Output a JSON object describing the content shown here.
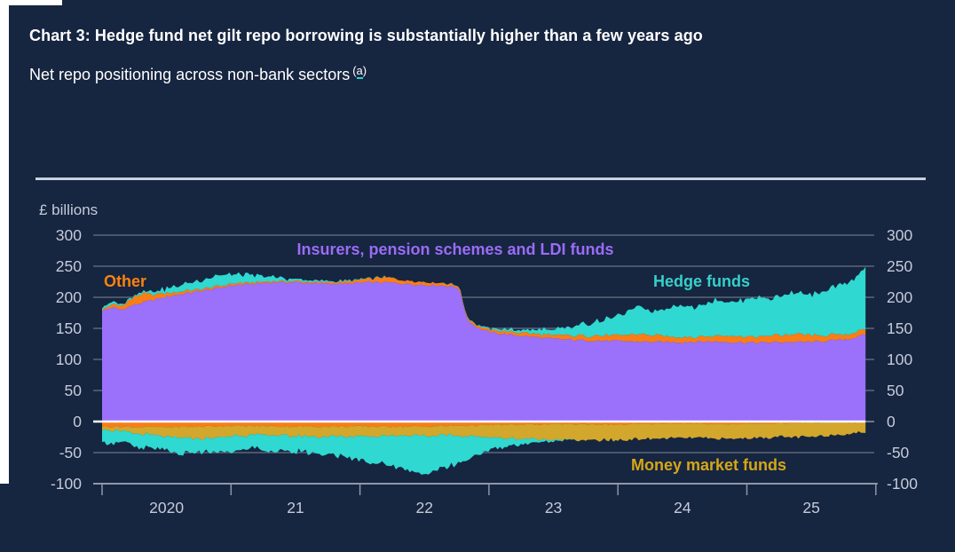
{
  "header": {
    "title": "Chart 3: Hedge fund net gilt repo borrowing is substantially higher than a few years ago",
    "subtitle": "Net repo positioning across non-bank sectors",
    "footnote_marker_open": "(",
    "footnote_marker_char": "a",
    "footnote_marker_close": ")"
  },
  "colors": {
    "background": "#162540",
    "insurers_area": "#9B70FA",
    "hedge_area": "#2FD8D0",
    "other_area": "#F97E16",
    "mmf_area": "#D2A72B",
    "insurers_label": "#9A6CF6",
    "hedge_label": "#35D1C9",
    "other_label": "#FF830F",
    "mmf_label": "#D6A716",
    "axis_text": "#C5CBD8",
    "gridline": "#5C6779",
    "axis_line": "#8D96A8",
    "zero_line": "#FFFFFF",
    "separator": "#C8D1DE",
    "footnote_underline": "#2DD1C9"
  },
  "chart_data": {
    "type": "area",
    "stacked": true,
    "title": "Net repo positioning across non-bank sectors",
    "ylabel": "£ billions",
    "ylim": [
      -100,
      300
    ],
    "grid": true,
    "y_axis": {
      "title": "£ billions",
      "ticks": [
        "300",
        "250",
        "200",
        "150",
        "100",
        "50",
        "0",
        "-50",
        "-100"
      ],
      "tick_values": [
        300,
        250,
        200,
        150,
        100,
        50,
        0,
        -50,
        -100
      ]
    },
    "x_axis": {
      "ticks": [
        "2020",
        "21",
        "22",
        "23",
        "24",
        "25"
      ],
      "unit": "years, data from Jan 2020 to late 2025"
    },
    "annotations": [
      {
        "text": "Insurers, pension schemes and LDI funds",
        "color": "#9A6CF6"
      },
      {
        "text": "Other",
        "color": "#FF830F"
      },
      {
        "text": "Hedge funds",
        "color": "#35D1C9"
      },
      {
        "text": "Money market funds",
        "color": "#D6A716"
      }
    ],
    "series": [
      {
        "name": "Insurers, pension schemes and LDI funds",
        "side": "positive",
        "stack_order": 0,
        "color": "#9B70FA",
        "t": [
          0,
          0.08,
          0.15,
          0.25,
          0.4,
          0.55,
          0.7,
          0.85,
          1.0,
          1.15,
          1.3,
          1.5,
          1.7,
          1.9,
          2.05,
          2.2,
          2.35,
          2.5,
          2.65,
          2.76,
          2.78,
          2.83,
          2.9,
          3.0,
          3.15,
          3.3,
          3.5,
          3.7,
          3.9,
          4.1,
          4.3,
          4.5,
          4.7,
          4.9,
          5.1,
          5.3,
          5.5,
          5.7,
          5.82,
          5.92
        ],
        "values": [
          178,
          184,
          180,
          188,
          196,
          203,
          208,
          213,
          219,
          221,
          224,
          224,
          222,
          222,
          224,
          224,
          222,
          220,
          219,
          216,
          205,
          165,
          152,
          144,
          140,
          137,
          133,
          131,
          130,
          129,
          128,
          128,
          129,
          128,
          127,
          128,
          128,
          131,
          134,
          140
        ]
      },
      {
        "name": "Other",
        "side": "positive",
        "stack_order": 1,
        "color": "#F97E16",
        "t": [
          0,
          0.15,
          0.25,
          0.32,
          0.4,
          0.5,
          0.65,
          0.8,
          1.0,
          1.3,
          1.6,
          1.9,
          2.05,
          2.2,
          2.35,
          2.5,
          2.65,
          2.8,
          3.0,
          3.2,
          3.5,
          3.8,
          4.0,
          4.2,
          4.4,
          4.6,
          4.8,
          5.0,
          5.2,
          5.4,
          5.6,
          5.8,
          5.92
        ],
        "values": [
          3,
          6,
          12,
          14,
          9,
          6,
          4,
          3,
          3,
          2,
          2,
          3,
          6,
          8,
          6,
          5,
          4,
          3,
          4,
          5,
          6,
          8,
          9,
          12,
          9,
          8,
          10,
          9,
          11,
          12,
          9,
          8,
          10
        ]
      },
      {
        "name": "Hedge funds",
        "side": "positive",
        "stack_order": 2,
        "color": "#2FD8D0",
        "t": [
          0,
          0.2,
          0.4,
          0.6,
          0.75,
          0.9,
          1.05,
          1.2,
          1.35,
          1.5,
          1.7,
          2.0,
          2.3,
          2.6,
          2.9,
          3.1,
          3.3,
          3.5,
          3.65,
          3.8,
          4.0,
          4.15,
          4.3,
          4.45,
          4.6,
          4.75,
          4.9,
          5.05,
          5.2,
          5.35,
          5.5,
          5.65,
          5.8,
          5.88,
          5.92
        ],
        "values": [
          4,
          2,
          5,
          10,
          14,
          17,
          14,
          10,
          6,
          3,
          2,
          1,
          0,
          0,
          1,
          3,
          5,
          9,
          14,
          22,
          30,
          44,
          38,
          52,
          48,
          58,
          54,
          64,
          59,
          68,
          64,
          74,
          84,
          92,
          102
        ]
      },
      {
        "name": "Other",
        "side": "negative",
        "stack_order": 0,
        "color": "#F97E16",
        "t": [
          0,
          0.5,
          1.0,
          1.5,
          2.0,
          2.5,
          2.9,
          3.2,
          3.6,
          4.0,
          4.4,
          4.8,
          5.2,
          5.6,
          5.92
        ],
        "values": [
          -8,
          -9,
          -7,
          -8,
          -8,
          -8,
          -6,
          -5,
          -4,
          -5,
          -3,
          -4,
          -3,
          -2,
          -2
        ]
      },
      {
        "name": "Money market funds",
        "side": "negative",
        "stack_order": 1,
        "color": "#D2A72B",
        "t": [
          0,
          0.2,
          0.4,
          0.6,
          0.8,
          1.0,
          1.3,
          1.6,
          2.0,
          2.3,
          2.6,
          2.9,
          3.1,
          3.4,
          3.7,
          4.0,
          4.3,
          4.6,
          4.9,
          5.2,
          5.5,
          5.75,
          5.92
        ],
        "values": [
          -4,
          -9,
          -14,
          -18,
          -20,
          -16,
          -14,
          -16,
          -16,
          -14,
          -15,
          -18,
          -22,
          -24,
          -26,
          -25,
          -24,
          -23,
          -24,
          -22,
          -23,
          -18,
          -15
        ]
      },
      {
        "name": "Hedge funds",
        "side": "negative",
        "stack_order": 2,
        "color": "#2FD8D0",
        "t": [
          0,
          0.15,
          0.3,
          0.45,
          0.6,
          0.75,
          0.9,
          1.0,
          1.15,
          1.3,
          1.45,
          1.6,
          1.75,
          1.9,
          2.05,
          2.2,
          2.35,
          2.5,
          2.6,
          2.75,
          2.9,
          3.0,
          3.15,
          3.3,
          3.45,
          3.55,
          3.7,
          5.92
        ],
        "values": [
          -22,
          -17,
          -24,
          -20,
          -27,
          -21,
          -24,
          -26,
          -20,
          -27,
          -23,
          -27,
          -29,
          -34,
          -40,
          -46,
          -54,
          -62,
          -56,
          -46,
          -30,
          -20,
          -13,
          -7,
          -3,
          -1,
          0,
          0
        ]
      }
    ]
  }
}
